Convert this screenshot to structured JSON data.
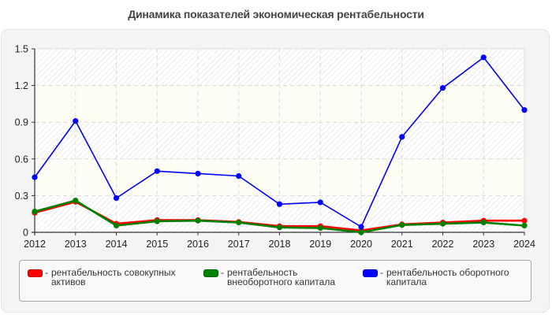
{
  "title": "Динамика показателей экономическая рентабельности",
  "chart_data": {
    "type": "line",
    "title": "Динамика показателей экономическая рентабельности",
    "xlabel": "",
    "ylabel": "",
    "x": [
      2012,
      2013,
      2014,
      2015,
      2016,
      2017,
      2018,
      2019,
      2020,
      2021,
      2022,
      2023,
      2024
    ],
    "ylim": [
      0,
      1.5
    ],
    "yticks": [
      0,
      0.3,
      0.6,
      0.9,
      1.2,
      1.5
    ],
    "ytick_labels": [
      "0",
      "0.3",
      "0.6",
      "0.9",
      "1.2",
      "1.5"
    ],
    "grid": true,
    "legend_position": "bottom",
    "series": [
      {
        "name": "рентабельность совокупных активов",
        "color": "#ff0000",
        "values": [
          0.16,
          0.25,
          0.07,
          0.1,
          0.1,
          0.085,
          0.05,
          0.05,
          0.015,
          0.065,
          0.08,
          0.095,
          0.095
        ]
      },
      {
        "name": "рентабельность внеоборотного капитала",
        "color": "#008000",
        "values": [
          0.17,
          0.26,
          0.055,
          0.09,
          0.095,
          0.08,
          0.04,
          0.035,
          0.0,
          0.06,
          0.07,
          0.08,
          0.055
        ]
      },
      {
        "name": "рентабельность оборотного капитала",
        "color": "#0000ff",
        "values": [
          0.45,
          0.91,
          0.28,
          0.5,
          0.48,
          0.46,
          0.23,
          0.245,
          0.045,
          0.78,
          1.18,
          1.43,
          1.0
        ]
      }
    ]
  },
  "legend": {
    "items": [
      {
        "label": "рентабельность совокупных активов",
        "color": "#ff0000"
      },
      {
        "label": "рентабельность внеоборотного капитала",
        "color": "#008000"
      },
      {
        "label": "рентабельность оборотного капитала",
        "color": "#0000ff"
      }
    ],
    "separator": "-"
  }
}
